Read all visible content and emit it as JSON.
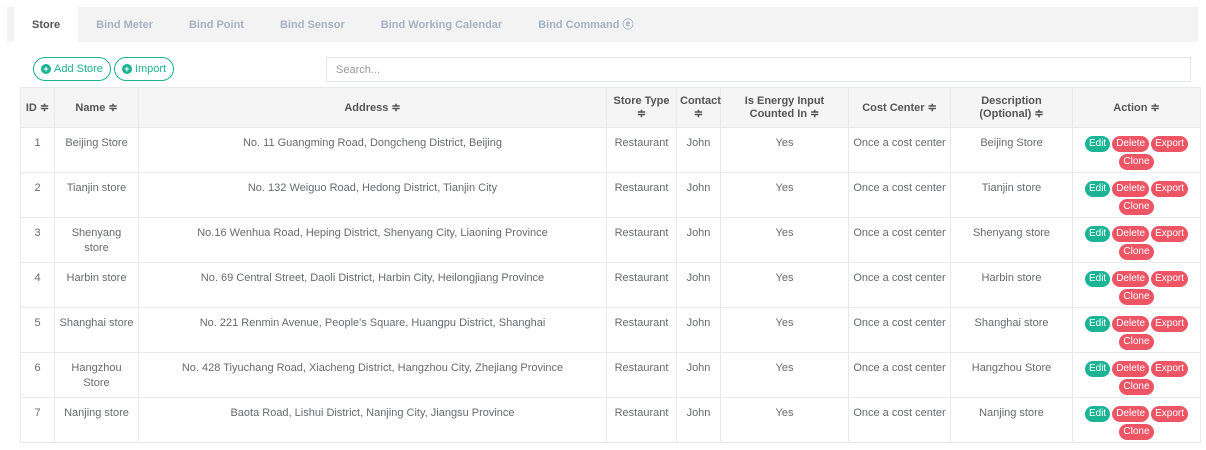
{
  "tabs": [
    "Store",
    "Bind Meter",
    "Bind Point",
    "Bind Sensor",
    "Bind Working Calendar",
    "Bind Command ⓔ"
  ],
  "toolbar": {
    "add_label": "Add Store",
    "import_label": "Import",
    "search_placeholder": "Search..."
  },
  "colors": {
    "accent": "#1ab394",
    "danger": "#ed5565"
  },
  "columns": [
    "ID ≑",
    "Name ≑",
    "Address ≑",
    "Store Type ≑",
    "Contact ≑",
    "Is Energy Input Counted In ≑",
    "Cost Center ≑",
    "Description (Optional) ≑",
    "Action ≑"
  ],
  "actions": {
    "edit": "Edit",
    "delete": "Delete",
    "export": "Export",
    "clone": "Clone"
  },
  "rows": [
    [
      "1",
      "Beijing Store",
      "No. 11 Guangming Road, Dongcheng District, Beijing",
      "Restaurant",
      "John",
      "Yes",
      "Once a cost center",
      "Beijing Store"
    ],
    [
      "2",
      "Tianjin store",
      "No. 132 Weiguo Road, Hedong District, Tianjin City",
      "Restaurant",
      "John",
      "Yes",
      "Once a cost center",
      "Tianjin store"
    ],
    [
      "3",
      "Shenyang store",
      "No.16 Wenhua Road, Heping District, Shenyang City, Liaoning Province",
      "Restaurant",
      "John",
      "Yes",
      "Once a cost center",
      "Shenyang store"
    ],
    [
      "4",
      "Harbin store",
      "No. 69 Central Street, Daoli District, Harbin City, Heilongjiang Province",
      "Restaurant",
      "John",
      "Yes",
      "Once a cost center",
      "Harbin store"
    ],
    [
      "5",
      "Shanghai store",
      "No. 221 Renmin Avenue, People's Square, Huangpu District, Shanghai",
      "Restaurant",
      "John",
      "Yes",
      "Once a cost center",
      "Shanghai store"
    ],
    [
      "6",
      "Hangzhou Store",
      "No. 428 Tiyuchang Road, Xiacheng District, Hangzhou City, Zhejiang Province",
      "Restaurant",
      "John",
      "Yes",
      "Once a cost center",
      "Hangzhou Store"
    ],
    [
      "7",
      "Nanjing store",
      "Baota Road, Lishui District, Nanjing City, Jiangsu Province",
      "Restaurant",
      "John",
      "Yes",
      "Once a cost center",
      "Nanjing store"
    ]
  ]
}
